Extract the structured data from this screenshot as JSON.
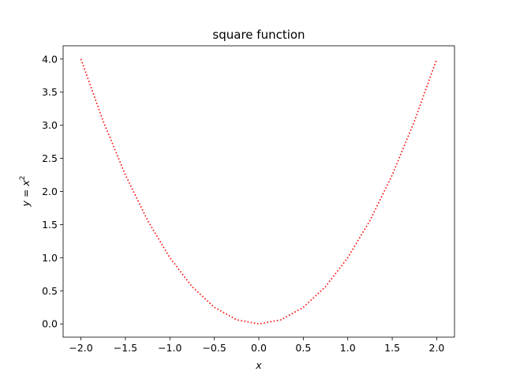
{
  "chart_data": {
    "type": "line",
    "title": "square function",
    "xlabel": "x",
    "ylabel": {
      "variable": "y",
      "equals": " = ",
      "base": "x",
      "exponent": "2"
    },
    "xlim": [
      -2.2,
      2.2
    ],
    "ylim": [
      -0.2,
      4.2
    ],
    "xticks": [
      -2.0,
      -1.5,
      -1.0,
      -0.5,
      0.0,
      0.5,
      1.0,
      1.5,
      2.0
    ],
    "yticks": [
      0.0,
      0.5,
      1.0,
      1.5,
      2.0,
      2.5,
      3.0,
      3.5,
      4.0
    ],
    "grid": false,
    "series": [
      {
        "color": "#ff0000",
        "linestyle": "dotted",
        "x": [
          -2.0,
          -1.75,
          -1.5,
          -1.25,
          -1.0,
          -0.75,
          -0.5,
          -0.25,
          0.0,
          0.25,
          0.5,
          0.75,
          1.0,
          1.25,
          1.5,
          1.75,
          2.0
        ],
        "y": [
          4.0,
          3.0625,
          2.25,
          1.5625,
          1.0,
          0.5625,
          0.25,
          0.0625,
          0.0,
          0.0625,
          0.25,
          0.5625,
          1.0,
          1.5625,
          2.25,
          3.0625,
          4.0
        ]
      }
    ]
  }
}
